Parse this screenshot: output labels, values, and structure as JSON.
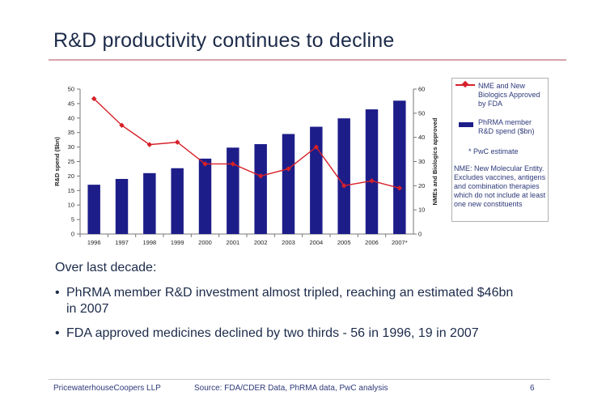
{
  "slide": {
    "title": "R&D productivity continues to decline",
    "intro": "Over last decade:",
    "bullets": [
      "PhRMA member R&D investment almost tripled, reaching an estimated $46bn in 2007",
      "FDA approved medicines declined by two thirds - 56 in 1996, 19 in 2007"
    ],
    "bullet_symbol": "•"
  },
  "legend": {
    "nme_label": "NME and New Biologics Approved by FDA",
    "phrma_label": "PhRMA member R&D spend ($bn)",
    "estimate_note": "* PwC estimate",
    "nme_definition": "NME: New Molecular Entity. Excludes vaccines, antigens and combination therapies which do not include at least one new constituents"
  },
  "footer": {
    "company": "PricewaterhouseCoopers LLP",
    "source": "Source: FDA/CDER Data, PhRMA data, PwC analysis",
    "page_number": "6"
  },
  "colors": {
    "bar": "#1d1d8a",
    "line": "#d62028",
    "text": "#1c2b4a"
  },
  "chart_data": {
    "type": "bar",
    "categories": [
      "1996",
      "1997",
      "1998",
      "1999",
      "2000",
      "2001",
      "2002",
      "2003",
      "2004",
      "2005",
      "2006",
      "2007*"
    ],
    "series": [
      {
        "name": "PhRMA member R&D spend ($bn)",
        "type": "bar",
        "axis": "left",
        "values": [
          17,
          19,
          21,
          22.7,
          26,
          29.8,
          31,
          34.5,
          37,
          39.9,
          43,
          46
        ]
      },
      {
        "name": "NME and New Biologics Approved by FDA",
        "type": "line",
        "axis": "right",
        "values": [
          56,
          45,
          37,
          38,
          29,
          29,
          24,
          27,
          36,
          20,
          22,
          19
        ]
      }
    ],
    "ylabel": "R&D spend ($bn)",
    "y2label": "NMEs and Biologics approved",
    "ylim": [
      0,
      50
    ],
    "y2lim": [
      0,
      60
    ],
    "yticks": [
      0,
      5,
      10,
      15,
      20,
      25,
      30,
      35,
      40,
      45,
      50
    ],
    "y2ticks": [
      0,
      10,
      20,
      30,
      40,
      50,
      60
    ]
  }
}
